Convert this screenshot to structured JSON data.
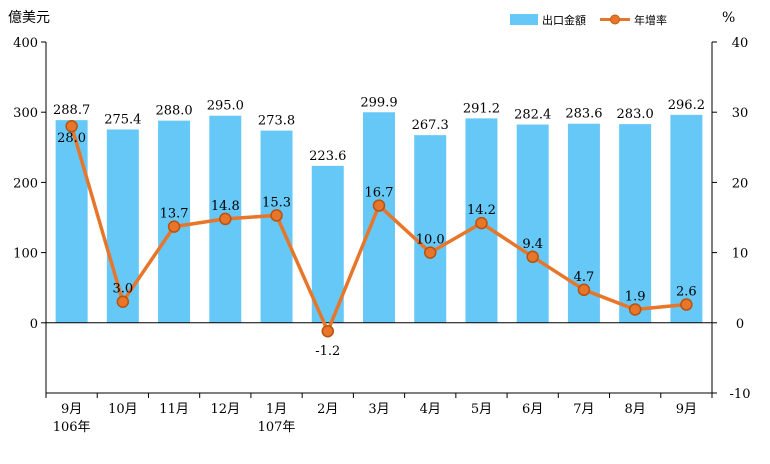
{
  "chart_data": {
    "type": "bar+line",
    "left_unit": "億美元",
    "right_unit": "%",
    "legend": {
      "bar": "出口金額",
      "line": "年增率"
    },
    "categories": [
      "9月",
      "10月",
      "11月",
      "12月",
      "1月",
      "2月",
      "3月",
      "4月",
      "5月",
      "6月",
      "7月",
      "8月",
      "9月"
    ],
    "year_labels": [
      "106年",
      "",
      "",
      "",
      "107年",
      "",
      "",
      "",
      "",
      "",
      "",
      "",
      ""
    ],
    "series": [
      {
        "name": "出口金額",
        "type": "bar",
        "axis": "left",
        "values": [
          288.7,
          275.4,
          288.0,
          295.0,
          273.8,
          223.6,
          299.9,
          267.3,
          291.2,
          282.4,
          283.6,
          283.0,
          296.2
        ]
      },
      {
        "name": "年增率",
        "type": "line",
        "axis": "right",
        "values": [
          28.0,
          3.0,
          13.7,
          14.8,
          15.3,
          -1.2,
          16.7,
          10.0,
          14.2,
          9.4,
          4.7,
          1.9,
          2.6
        ]
      }
    ],
    "left_ticks": [
      400,
      300,
      200,
      100,
      0
    ],
    "right_ticks": [
      40,
      30,
      20,
      10,
      0,
      -10
    ],
    "ylim_left": [
      -100,
      400
    ],
    "ylim_right": [
      -10,
      40
    ],
    "colors": {
      "bar": "#66c8f7",
      "line": "#e8762a",
      "marker_fill": "#e8762a"
    }
  }
}
